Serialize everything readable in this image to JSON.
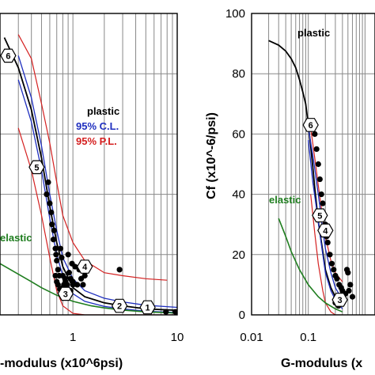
{
  "chart_data": [
    {
      "type": "scatter",
      "panel": "left",
      "xscale": "log",
      "xlim": [
        0.2,
        10
      ],
      "ylim": [
        0,
        100
      ],
      "x_tick_labels": [
        "1",
        "10"
      ],
      "x_tick_values": [
        1,
        10
      ],
      "xlabel": "-modulus (x10^6psi)",
      "grid": true,
      "legend": [
        {
          "label": "plastic",
          "color": "#000000"
        },
        {
          "label": "95% C.L.",
          "color": "#1f2fbf"
        },
        {
          "label": "95% P.L.",
          "color": "#d42020"
        }
      ],
      "elastic_label": "elastic",
      "colors": {
        "plastic": "#000000",
        "cl": "#1f2fbf",
        "pl": "#d42020",
        "elastic": "#1e7d1e"
      },
      "series": [
        {
          "role": "plastic",
          "x": [
            0.22,
            0.3,
            0.4,
            0.5,
            0.6,
            0.7,
            0.8,
            1.0,
            1.3,
            2.0,
            3.0,
            5.0,
            10.0
          ],
          "y": [
            92,
            82,
            68,
            52,
            36,
            24,
            16,
            9,
            6,
            4,
            3,
            2,
            1.5
          ]
        },
        {
          "role": "cl_upper",
          "x": [
            0.3,
            0.4,
            0.5,
            0.6,
            0.7,
            0.8,
            1.0,
            1.3,
            2.0,
            3.0,
            5.0,
            10.0
          ],
          "y": [
            86,
            72,
            56,
            40,
            28,
            19,
            12,
            8,
            5.5,
            4.3,
            3.2,
            2.5
          ]
        },
        {
          "role": "cl_lower",
          "x": [
            0.3,
            0.4,
            0.5,
            0.6,
            0.7,
            0.8,
            1.0,
            1.3,
            2.0,
            3.0,
            5.0,
            10.0
          ],
          "y": [
            78,
            64,
            48,
            32,
            20,
            13,
            7,
            4.5,
            2.8,
            2,
            1.2,
            0.8
          ]
        },
        {
          "role": "pl_upper",
          "x": [
            0.3,
            0.4,
            0.5,
            0.6,
            0.7,
            0.8,
            1.0,
            1.3,
            2.0,
            3.0,
            5.0,
            8.0
          ],
          "y": [
            93,
            85,
            70,
            57,
            44,
            33,
            24,
            18,
            14,
            13,
            12,
            11.5
          ]
        },
        {
          "role": "pl_lower",
          "x": [
            0.3,
            0.4,
            0.5,
            0.6,
            0.7,
            0.8,
            1.0,
            1.3,
            2.0,
            3.0,
            5.0,
            10.0
          ],
          "y": [
            62,
            48,
            33,
            19,
            8,
            3,
            0.5,
            0,
            0,
            0,
            0,
            0
          ]
        },
        {
          "role": "elastic",
          "x": [
            0.2,
            0.3,
            0.4,
            0.5,
            0.7,
            1.0,
            1.5,
            2.0,
            3.0,
            5.0,
            10.0
          ],
          "y": [
            17,
            13.5,
            11,
            9,
            6.5,
            4.5,
            3,
            2.3,
            1.6,
            1,
            0.6
          ]
        },
        {
          "role": "data",
          "x": [
            0.56,
            0.58,
            0.6,
            0.62,
            0.63,
            0.65,
            0.66,
            0.68,
            0.69,
            0.7,
            0.72,
            0.74,
            0.76,
            0.78,
            0.8,
            0.82,
            0.85,
            0.9,
            0.92,
            0.95,
            0.98,
            1.0,
            1.05,
            1.1,
            1.15,
            1.2,
            1.25,
            1.3,
            0.68,
            0.7,
            0.72,
            0.75,
            0.8,
            0.84,
            0.88,
            0.95,
            1.0,
            2.8,
            5.5,
            7.8,
            9.6
          ],
          "y": [
            40,
            44,
            37,
            34,
            30,
            25,
            28,
            22,
            20,
            18,
            15,
            13,
            22,
            19,
            13,
            10,
            11,
            20,
            14,
            12,
            17,
            11,
            16,
            10,
            15,
            12,
            10,
            13,
            13,
            11,
            10,
            8.5,
            9,
            12,
            10,
            8,
            10,
            15,
            2,
            1,
            1
          ]
        }
      ],
      "markers": [
        {
          "label": "1",
          "x": 5.2,
          "y": 2.5
        },
        {
          "label": "2",
          "x": 2.8,
          "y": 3
        },
        {
          "label": "3",
          "x": 0.85,
          "y": 7
        },
        {
          "label": "4",
          "x": 1.3,
          "y": 16
        },
        {
          "label": "5",
          "x": 0.45,
          "y": 49
        },
        {
          "label": "6",
          "x": 0.24,
          "y": 86
        }
      ]
    },
    {
      "type": "scatter",
      "panel": "right",
      "xscale": "log",
      "xlim": [
        0.01,
        1.5
      ],
      "ylim": [
        0,
        100
      ],
      "x_tick_labels": [
        "0.01",
        "0.1"
      ],
      "x_tick_values": [
        0.01,
        0.1
      ],
      "y_tick_labels": [
        "0",
        "20",
        "40",
        "60",
        "80",
        "100"
      ],
      "y_tick_values": [
        0,
        20,
        40,
        60,
        80,
        100
      ],
      "ylabel": "Cf (x10^-6/psi)",
      "xlabel": "G-modulus (x",
      "grid": true,
      "plastic_label": "plastic",
      "elastic_label": "elastic",
      "colors": {
        "plastic": "#000000",
        "cl": "#1f2fbf",
        "pl": "#d42020",
        "elastic": "#1e7d1e"
      },
      "series": [
        {
          "role": "plastic",
          "x": [
            0.02,
            0.03,
            0.04,
            0.05,
            0.06,
            0.07,
            0.08,
            0.09,
            0.1,
            0.11,
            0.12,
            0.13,
            0.15,
            0.18,
            0.2,
            0.25,
            0.3,
            0.4
          ],
          "y": [
            91,
            89.5,
            87.5,
            85,
            82,
            78,
            74,
            70,
            63,
            56,
            49,
            42,
            31,
            21,
            15,
            9,
            6,
            3
          ]
        },
        {
          "role": "cl_upper",
          "x": [
            0.1,
            0.12,
            0.14,
            0.16,
            0.18,
            0.2,
            0.25,
            0.3,
            0.4
          ],
          "y": [
            62,
            53,
            44,
            36,
            28,
            22,
            14,
            9,
            5
          ]
        },
        {
          "role": "cl_lower",
          "x": [
            0.1,
            0.12,
            0.14,
            0.16,
            0.18,
            0.2,
            0.25,
            0.3,
            0.4
          ],
          "y": [
            58,
            44,
            35,
            27,
            20,
            14,
            8,
            5,
            2
          ]
        },
        {
          "role": "pl_upper",
          "x": [
            0.11,
            0.13,
            0.15,
            0.18,
            0.2,
            0.25,
            0.3,
            0.4
          ],
          "y": [
            62,
            52,
            43,
            32,
            26,
            18,
            14,
            11
          ]
        },
        {
          "role": "pl_lower",
          "x": [
            0.11,
            0.13,
            0.15,
            0.18,
            0.2,
            0.25,
            0.3,
            0.4
          ],
          "y": [
            40,
            27,
            17,
            8,
            4,
            1,
            0,
            0
          ]
        },
        {
          "role": "elastic",
          "x": [
            0.03,
            0.04,
            0.05,
            0.07,
            0.1,
            0.15,
            0.2,
            0.3,
            0.4
          ],
          "y": [
            32,
            26,
            21,
            15,
            10,
            6,
            4,
            2,
            1
          ]
        },
        {
          "role": "data",
          "x": [
            0.13,
            0.14,
            0.15,
            0.16,
            0.17,
            0.18,
            0.19,
            0.2,
            0.21,
            0.22,
            0.24,
            0.26,
            0.28,
            0.3,
            0.32,
            0.35,
            0.38,
            0.4,
            0.45,
            0.5,
            0.55,
            0.6,
            0.3,
            0.34,
            0.42,
            0.48,
            0.52
          ],
          "y": [
            60,
            55,
            50,
            45,
            40,
            37,
            33,
            30,
            26,
            24,
            20,
            17,
            15,
            13,
            12,
            10,
            9,
            8,
            7,
            14,
            10,
            6,
            4,
            3,
            5,
            15,
            8
          ]
        }
      ],
      "markers": [
        {
          "label": "3",
          "x": 0.36,
          "y": 5
        },
        {
          "label": "4",
          "x": 0.2,
          "y": 28
        },
        {
          "label": "5",
          "x": 0.16,
          "y": 33
        },
        {
          "label": "6",
          "x": 0.11,
          "y": 63
        }
      ]
    }
  ]
}
